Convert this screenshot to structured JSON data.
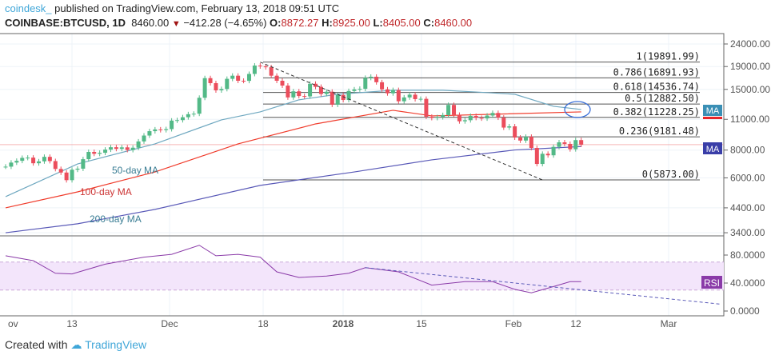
{
  "header": {
    "user": "coindesk_",
    "published": "published on TradingView.com, February 13, 2018 09:51 UTC",
    "symbol": "COINBASE:BTCUSD, 1D",
    "last": "8460.00",
    "change": "−412.28 (−4.65%)",
    "o_label": "O:",
    "o": "8872.27",
    "h_label": "H:",
    "h": "8925.00",
    "l_label": "L:",
    "l": "8405.00",
    "c_label": "C:",
    "c": "8460.00"
  },
  "footer": {
    "created": "Created with",
    "brand": "TradingView"
  },
  "colors": {
    "up": "#53b987",
    "down": "#eb4d5c",
    "ma50": "#6fa8c0",
    "ma100": "#f03c2c",
    "ma200": "#5a5ab8",
    "rsi": "#8a3aa8",
    "rsi_band": "#f3e5fb"
  },
  "chart_data": [
    {
      "type": "candlestick",
      "scale": "log",
      "ylim": [
        3400,
        24000
      ],
      "yticks": [
        "24000.00",
        "19000.00",
        "15000.00",
        "11000.00",
        "8000.00",
        "6000.00",
        "4400.00",
        "3400.00"
      ],
      "xticks": [
        "ov",
        "13",
        "Dec",
        "18",
        "2018",
        "15",
        "Feb",
        "12",
        "Mar"
      ],
      "start_date": "2017-11-01",
      "close": [
        6740,
        7030,
        7160,
        7380,
        7400,
        6980,
        7120,
        7460,
        7140,
        6580,
        6340,
        5860,
        6530,
        6600,
        7280,
        7850,
        7700,
        7780,
        8040,
        8240,
        8100,
        8230,
        8010,
        8200,
        8750,
        9300,
        9730,
        9910,
        9840,
        9940,
        10860,
        10910,
        11240,
        11600,
        11660,
        13750,
        16850,
        16000,
        14850,
        15060,
        16730,
        17280,
        16400,
        16380,
        17600,
        19200,
        19040,
        18860,
        17280,
        16400,
        15600,
        13800,
        14700,
        14000,
        13950,
        15900,
        15400,
        14300,
        14640,
        12800,
        14150,
        13440,
        14750,
        15000,
        15090,
        16900,
        17100,
        16150,
        15000,
        14400,
        14900,
        13260,
        13800,
        14200,
        13560,
        13600,
        11300,
        11160,
        11250,
        11500,
        12770,
        11530,
        10780,
        10900,
        11400,
        11170,
        11100,
        11440,
        11750,
        11200,
        10100,
        10230,
        9110,
        8830,
        9180,
        8180,
        6930,
        7700,
        7580,
        8270,
        8670,
        8530,
        8070,
        8872.27,
        8460
      ],
      "series": [
        {
          "name": "50-day MA",
          "points": [
            [
              "2017-11-01",
              4940
            ],
            [
              "2017-11-14",
              6930
            ],
            [
              "2017-11-28",
              8530
            ],
            [
              "2017-12-10",
              10940
            ],
            [
              "2017-12-17",
              11880
            ],
            [
              "2017-12-24",
              13460
            ],
            [
              "2017-12-31",
              14260
            ],
            [
              "2018-01-10",
              14860
            ],
            [
              "2018-01-19",
              14860
            ],
            [
              "2018-01-25",
              14600
            ],
            [
              "2018-02-01",
              14260
            ],
            [
              "2018-02-08",
              12590
            ],
            [
              "2018-02-13",
              12180
            ]
          ]
        },
        {
          "name": "100-day MA",
          "points": [
            [
              "2017-11-01",
              4400
            ],
            [
              "2017-11-14",
              5190
            ],
            [
              "2017-11-28",
              6380
            ],
            [
              "2017-12-13",
              8530
            ],
            [
              "2017-12-27",
              10490
            ],
            [
              "2018-01-10",
              12080
            ],
            [
              "2018-01-17",
              11400
            ],
            [
              "2018-02-13",
              11880
            ]
          ]
        },
        {
          "name": "200-day MA",
          "points": [
            [
              "2017-11-01",
              3400
            ],
            [
              "2017-11-14",
              3730
            ],
            [
              "2017-11-28",
              4330
            ],
            [
              "2017-12-17",
              5550
            ],
            [
              "2018-01-03",
              6380
            ],
            [
              "2018-01-17",
              7230
            ],
            [
              "2018-02-01",
              8010
            ],
            [
              "2018-02-13",
              8300
            ]
          ]
        }
      ],
      "fib": [
        {
          "label": "1(19891.99)",
          "value": 19891.99
        },
        {
          "label": "0.786(16891.93)",
          "value": 16891.93
        },
        {
          "label": "0.618(14536.74)",
          "value": 14536.74
        },
        {
          "label": "0.5(12882.50)",
          "value": 12882.5
        },
        {
          "label": "0.382(11228.25)",
          "value": 11228.25
        },
        {
          "label": "0.236(9181.48)",
          "value": 9181.48
        },
        {
          "label": "0(5873.00)",
          "value": 5873
        }
      ],
      "trendline": [
        [
          "2017-12-17",
          19891.99
        ],
        [
          "2018-02-06",
          5873
        ]
      ],
      "badges": [
        "MA",
        "MA"
      ]
    },
    {
      "type": "line",
      "name": "RSI",
      "ylim": [
        0,
        100
      ],
      "yticks": [
        "80.0000",
        "40.0000",
        "0.0000"
      ],
      "band": [
        30,
        70
      ],
      "points": [
        [
          "2017-11-01",
          79
        ],
        [
          "2017-11-06",
          72
        ],
        [
          "2017-11-10",
          54
        ],
        [
          "2017-11-13",
          53
        ],
        [
          "2017-11-19",
          67
        ],
        [
          "2017-11-26",
          77
        ],
        [
          "2017-12-01",
          81
        ],
        [
          "2017-12-06",
          94
        ],
        [
          "2017-12-09",
          79
        ],
        [
          "2017-12-13",
          81
        ],
        [
          "2017-12-17",
          77
        ],
        [
          "2017-12-20",
          56
        ],
        [
          "2017-12-24",
          48
        ],
        [
          "2017-12-29",
          50
        ],
        [
          "2018-01-02",
          54
        ],
        [
          "2018-01-05",
          62
        ],
        [
          "2018-01-11",
          56
        ],
        [
          "2018-01-17",
          37
        ],
        [
          "2018-01-23",
          42
        ],
        [
          "2018-01-28",
          42
        ],
        [
          "2018-02-01",
          31
        ],
        [
          "2018-02-04",
          26
        ],
        [
          "2018-02-08",
          35
        ],
        [
          "2018-02-11",
          42
        ],
        [
          "2018-02-13",
          42
        ]
      ],
      "trendline": [
        [
          "2018-01-05",
          62
        ],
        [
          "2018-03-10",
          10
        ]
      ],
      "badge": "RSI"
    }
  ]
}
